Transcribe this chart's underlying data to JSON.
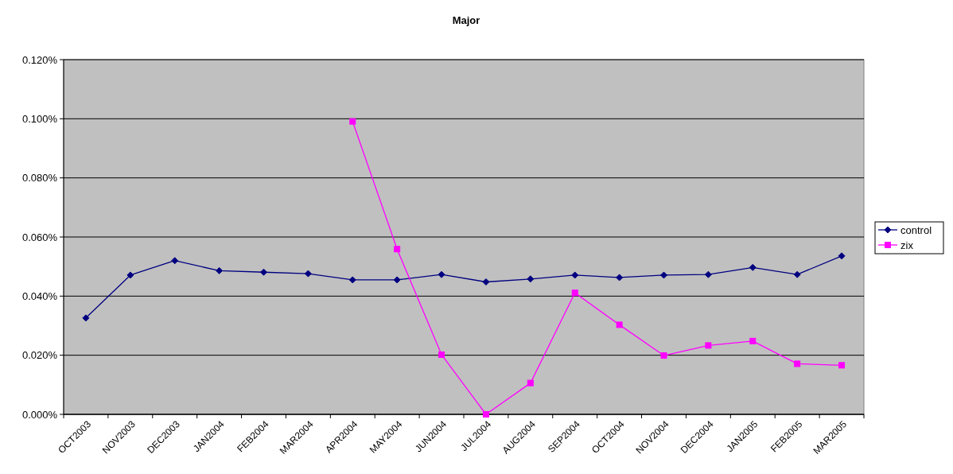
{
  "chart_data": {
    "type": "line",
    "title": "Major",
    "categories": [
      "OCT2003",
      "NOV2003",
      "DEC2003",
      "JAN2004",
      "FEB2004",
      "MAR2004",
      "APR2004",
      "MAY2004",
      "JUN2004",
      "JUL2004",
      "AUG2004",
      "SEP2004",
      "OCT2004",
      "NOV2004",
      "DEC2004",
      "JAN2005",
      "FEB2005",
      "MAR2005"
    ],
    "series": [
      {
        "name": "control",
        "color": "#000080",
        "marker": "diamond",
        "values": [
          0.0326,
          0.0471,
          0.052,
          0.0486,
          0.0481,
          0.0476,
          0.0455,
          0.0455,
          0.0473,
          0.0448,
          0.0458,
          0.0471,
          0.0463,
          0.0471,
          0.0473,
          0.0497,
          0.0473,
          0.0536
        ]
      },
      {
        "name": "zix",
        "color": "#ff00ff",
        "marker": "square",
        "values": [
          null,
          null,
          null,
          null,
          null,
          null,
          0.0991,
          0.0559,
          0.0202,
          0,
          0.0106,
          0.0411,
          0.0303,
          0.0199,
          0.0233,
          0.0248,
          0.0171,
          0.0166
        ]
      }
    ],
    "ylim": [
      0,
      0.12
    ],
    "yticks": [
      {
        "value": 0,
        "label": "0.000%"
      },
      {
        "value": 0.02,
        "label": "0.020%"
      },
      {
        "value": 0.04,
        "label": "0.040%"
      },
      {
        "value": 0.06,
        "label": "0.060%"
      },
      {
        "value": 0.08,
        "label": "0.080%"
      },
      {
        "value": 0.1,
        "label": "0.100%"
      },
      {
        "value": 0.12,
        "label": "0.120%"
      }
    ],
    "grid": "y",
    "legend": "right"
  }
}
